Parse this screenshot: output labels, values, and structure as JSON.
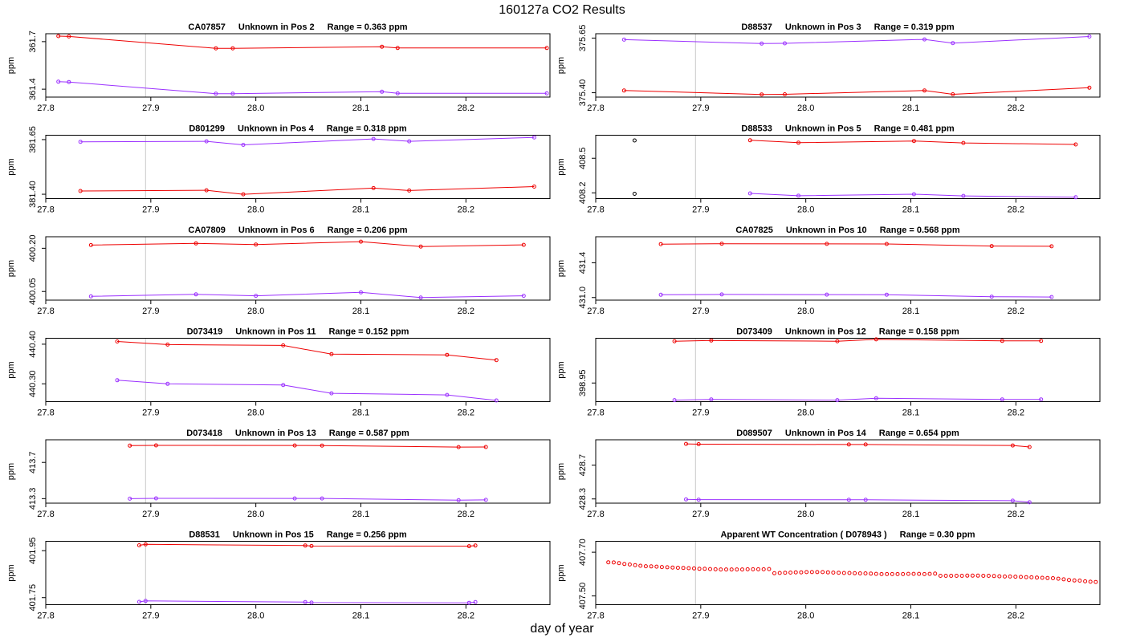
{
  "header": {
    "title": "160127a  CO2 Results"
  },
  "footer": {
    "xlabel": "day of year"
  },
  "colors": {
    "red_series": "#ee0000",
    "purple_series": "#9b30ff",
    "single_point": "#000000",
    "ref_line": "#c8c8c8"
  },
  "chart_data": [
    {
      "type": "line",
      "col": 0,
      "row": 0,
      "title_parts": [
        "CA07857",
        "Unknown in Pos 2",
        "Range =  0.363 ppm"
      ],
      "ylabel": "ppm",
      "xlim": [
        27.8,
        28.28
      ],
      "ylim": [
        361.35,
        361.75
      ],
      "xticks": [
        "27.8",
        "27.9",
        "28.0",
        "28.1",
        "28.2"
      ],
      "yticks": [
        "361.4",
        "361.7"
      ],
      "vlines": [
        27.895,
        28.28
      ],
      "series": [
        {
          "name": "red",
          "color": "#ee0000",
          "x": [
            27.812,
            27.822,
            27.962,
            27.978,
            28.12,
            28.135,
            28.277
          ],
          "y": [
            361.735,
            361.733,
            361.658,
            361.658,
            361.668,
            361.66,
            361.66
          ]
        },
        {
          "name": "purple",
          "color": "#9b30ff",
          "x": [
            27.812,
            27.822,
            27.962,
            27.978,
            28.12,
            28.135,
            28.277
          ],
          "y": [
            361.447,
            361.445,
            361.372,
            361.372,
            361.384,
            361.374,
            361.374
          ]
        }
      ]
    },
    {
      "type": "line",
      "col": 1,
      "row": 0,
      "title_parts": [
        "D88537",
        "Unknown in Pos 3",
        "Range =  0.319 ppm"
      ],
      "ylabel": "ppm",
      "xlim": [
        27.8,
        28.28
      ],
      "ylim": [
        375.38,
        375.67
      ],
      "xticks": [
        "27.8",
        "27.9",
        "28.0",
        "28.1",
        "28.2"
      ],
      "yticks": [
        "375.40",
        "375.65"
      ],
      "vlines": [
        27.895,
        28.28
      ],
      "series": [
        {
          "name": "purple",
          "color": "#9b30ff",
          "x": [
            27.827,
            27.958,
            27.98,
            28.113,
            28.14,
            28.27
          ],
          "y": [
            375.643,
            375.625,
            375.626,
            375.644,
            375.627,
            375.657
          ]
        },
        {
          "name": "red",
          "color": "#ee0000",
          "x": [
            27.827,
            27.958,
            27.98,
            28.113,
            28.14,
            28.27
          ],
          "y": [
            375.41,
            375.392,
            375.393,
            375.41,
            375.393,
            375.423
          ]
        }
      ]
    },
    {
      "type": "line",
      "col": 0,
      "row": 1,
      "title_parts": [
        "D801299",
        "Unknown in Pos 4",
        "Range =  0.318 ppm"
      ],
      "ylabel": "ppm",
      "xlim": [
        27.8,
        28.28
      ],
      "ylim": [
        381.38,
        381.67
      ],
      "xticks": [
        "27.8",
        "27.9",
        "28.0",
        "28.1",
        "28.2"
      ],
      "yticks": [
        "381.40",
        "381.65"
      ],
      "vlines": [
        27.895,
        28.28
      ],
      "series": [
        {
          "name": "purple",
          "color": "#9b30ff",
          "x": [
            27.833,
            27.953,
            27.988,
            28.112,
            28.146,
            28.265
          ],
          "y": [
            381.64,
            381.642,
            381.626,
            381.653,
            381.642,
            381.66
          ]
        },
        {
          "name": "red",
          "color": "#ee0000",
          "x": [
            27.833,
            27.953,
            27.988,
            28.112,
            28.146,
            28.265
          ],
          "y": [
            381.415,
            381.418,
            381.4,
            381.428,
            381.417,
            381.435
          ]
        }
      ]
    },
    {
      "type": "line",
      "col": 1,
      "row": 1,
      "title_parts": [
        "D88533",
        "Unknown in Pos 5",
        "Range =  0.481 ppm"
      ],
      "ylabel": "ppm",
      "xlim": [
        27.8,
        28.28
      ],
      "ylim": [
        408.15,
        408.7
      ],
      "xticks": [
        "27.8",
        "27.9",
        "28.0",
        "28.1",
        "28.2"
      ],
      "yticks": [
        "408.2",
        "408.5"
      ],
      "vlines": [
        27.895,
        28.28
      ],
      "series": [
        {
          "name": "red",
          "color": "#ee0000",
          "x": [
            27.947,
            27.993,
            28.103,
            28.15,
            28.257
          ],
          "y": [
            408.656,
            408.635,
            408.65,
            408.633,
            408.62
          ]
        },
        {
          "name": "purple",
          "color": "#9b30ff",
          "x": [
            27.947,
            27.993,
            28.103,
            28.15,
            28.257
          ],
          "y": [
            408.195,
            408.175,
            408.188,
            408.174,
            408.162
          ]
        },
        {
          "name": "single",
          "color": "#000000",
          "points_only": true,
          "x": [
            27.837,
            27.837
          ],
          "y": [
            408.655,
            408.192
          ]
        }
      ]
    },
    {
      "type": "line",
      "col": 0,
      "row": 2,
      "title_parts": [
        "CA07809",
        "Unknown in Pos 6",
        "Range =  0.206 ppm"
      ],
      "ylabel": "ppm",
      "xlim": [
        27.8,
        28.28
      ],
      "ylim": [
        400.02,
        400.24
      ],
      "xticks": [
        "27.8",
        "27.9",
        "28.0",
        "28.1",
        "28.2"
      ],
      "yticks": [
        "400.05",
        "400.20"
      ],
      "vlines": [
        27.895,
        28.28
      ],
      "series": [
        {
          "name": "red",
          "color": "#ee0000",
          "x": [
            27.843,
            27.943,
            28.0,
            28.1,
            28.157,
            28.255
          ],
          "y": [
            400.211,
            400.217,
            400.213,
            400.223,
            400.206,
            400.212
          ]
        },
        {
          "name": "purple",
          "color": "#9b30ff",
          "x": [
            27.843,
            27.943,
            28.0,
            28.1,
            28.157,
            28.255
          ],
          "y": [
            400.033,
            400.04,
            400.035,
            400.047,
            400.029,
            400.035
          ]
        }
      ]
    },
    {
      "type": "line",
      "col": 1,
      "row": 2,
      "title_parts": [
        "CA07825",
        "Unknown in Pos 10",
        "Range =  0.568 ppm"
      ],
      "ylabel": "ppm",
      "xlim": [
        27.8,
        28.28
      ],
      "ylim": [
        430.97,
        431.7
      ],
      "xticks": [
        "27.8",
        "27.9",
        "28.0",
        "28.1",
        "28.2"
      ],
      "yticks": [
        "431.0",
        "431.4"
      ],
      "vlines": [
        27.895,
        28.28
      ],
      "series": [
        {
          "name": "red",
          "color": "#ee0000",
          "x": [
            27.862,
            27.92,
            28.02,
            28.077,
            28.177,
            28.234
          ],
          "y": [
            431.615,
            431.62,
            431.618,
            431.617,
            431.593,
            431.59
          ]
        },
        {
          "name": "purple",
          "color": "#9b30ff",
          "x": [
            27.862,
            27.92,
            28.02,
            28.077,
            28.177,
            28.234
          ],
          "y": [
            431.032,
            431.036,
            431.034,
            431.033,
            431.01,
            431.006
          ]
        }
      ]
    },
    {
      "type": "line",
      "col": 0,
      "row": 3,
      "title_parts": [
        "D073419",
        "Unknown in Pos 11",
        "Range =  0.152 ppm"
      ],
      "ylabel": "ppm",
      "xlim": [
        27.8,
        28.28
      ],
      "ylim": [
        440.255,
        440.415
      ],
      "xticks": [
        "27.8",
        "27.9",
        "28.0",
        "28.1",
        "28.2"
      ],
      "yticks": [
        "440.30",
        "440.40"
      ],
      "vlines": [
        27.895,
        28.28
      ],
      "series": [
        {
          "name": "red",
          "color": "#ee0000",
          "x": [
            27.868,
            27.916,
            28.026,
            28.072,
            28.182,
            28.229
          ],
          "y": [
            440.407,
            440.399,
            440.397,
            440.375,
            440.373,
            440.36
          ]
        },
        {
          "name": "purple",
          "color": "#9b30ff",
          "x": [
            27.868,
            27.916,
            28.026,
            28.072,
            28.182,
            28.229
          ],
          "y": [
            440.309,
            440.3,
            440.297,
            440.276,
            440.272,
            440.258
          ]
        }
      ]
    },
    {
      "type": "line",
      "col": 1,
      "row": 3,
      "title_parts": [
        "D073409",
        "Unknown in Pos 12",
        "Range =  0.158 ppm"
      ],
      "ylabel": "ppm",
      "xlim": [
        27.8,
        28.28
      ],
      "ylim": [
        398.9,
        399.07
      ],
      "xticks": [
        "27.8",
        "27.9",
        "28.0",
        "28.1",
        "28.2"
      ],
      "yticks": [
        "398.95"
      ],
      "vlines": [
        27.895,
        28.28
      ],
      "series": [
        {
          "name": "red",
          "color": "#ee0000",
          "x": [
            27.875,
            27.91,
            28.03,
            28.067,
            28.187,
            28.224
          ],
          "y": [
            399.062,
            399.064,
            399.062,
            399.067,
            399.063,
            399.063
          ]
        },
        {
          "name": "purple",
          "color": "#9b30ff",
          "x": [
            27.875,
            27.91,
            28.03,
            28.067,
            28.187,
            28.224
          ],
          "y": [
            398.904,
            398.906,
            398.904,
            398.909,
            398.906,
            398.906
          ]
        }
      ]
    },
    {
      "type": "line",
      "col": 0,
      "row": 4,
      "title_parts": [
        "D073418",
        "Unknown in Pos 13",
        "Range =  0.587 ppm"
      ],
      "ylabel": "ppm",
      "xlim": [
        27.8,
        28.28
      ],
      "ylim": [
        413.25,
        413.95
      ],
      "xticks": [
        "27.8",
        "27.9",
        "28.0",
        "28.1",
        "28.2"
      ],
      "yticks": [
        "413.3",
        "413.7"
      ],
      "vlines": [
        27.895,
        28.28
      ],
      "series": [
        {
          "name": "red",
          "color": "#ee0000",
          "x": [
            27.88,
            27.905,
            28.037,
            28.063,
            28.193,
            28.219
          ],
          "y": [
            413.885,
            413.888,
            413.887,
            413.886,
            413.869,
            413.87
          ]
        },
        {
          "name": "purple",
          "color": "#9b30ff",
          "x": [
            27.88,
            27.905,
            28.037,
            28.063,
            28.193,
            28.219
          ],
          "y": [
            413.3,
            413.303,
            413.302,
            413.302,
            413.283,
            413.286
          ]
        }
      ]
    },
    {
      "type": "line",
      "col": 1,
      "row": 4,
      "title_parts": [
        "D089507",
        "Unknown in Pos 14",
        "Range =  0.654 ppm"
      ],
      "ylabel": "ppm",
      "xlim": [
        27.8,
        28.28
      ],
      "ylim": [
        428.25,
        429.0
      ],
      "xticks": [
        "27.8",
        "27.9",
        "28.0",
        "28.1",
        "28.2"
      ],
      "yticks": [
        "428.3",
        "428.7"
      ],
      "vlines": [
        27.895,
        28.28
      ],
      "series": [
        {
          "name": "red",
          "color": "#ee0000",
          "x": [
            27.886,
            27.898,
            28.041,
            28.057,
            28.197,
            28.213
          ],
          "y": [
            428.952,
            428.948,
            428.944,
            428.944,
            428.933,
            428.915
          ]
        },
        {
          "name": "purple",
          "color": "#9b30ff",
          "x": [
            27.886,
            27.898,
            28.041,
            28.057,
            28.197,
            28.213
          ],
          "y": [
            428.295,
            428.292,
            428.29,
            428.29,
            428.279,
            428.26
          ]
        }
      ]
    },
    {
      "type": "line",
      "col": 0,
      "row": 5,
      "title_parts": [
        "D88531",
        "Unknown in Pos 15",
        "Range =  0.256 ppm"
      ],
      "ylabel": "ppm",
      "xlim": [
        27.8,
        28.28
      ],
      "ylim": [
        401.72,
        401.99
      ],
      "xticks": [
        "27.8",
        "27.9",
        "28.0",
        "28.1",
        "28.2"
      ],
      "yticks": [
        "401.75",
        "401.95"
      ],
      "vlines": [
        27.895,
        28.28
      ],
      "series": [
        {
          "name": "red",
          "color": "#ee0000",
          "x": [
            27.889,
            27.895,
            28.047,
            28.053,
            28.203,
            28.209
          ],
          "y": [
            401.973,
            401.977,
            401.972,
            401.97,
            401.969,
            401.972
          ]
        },
        {
          "name": "purple",
          "color": "#9b30ff",
          "x": [
            27.889,
            27.895,
            28.047,
            28.053,
            28.203,
            28.209
          ],
          "y": [
            401.732,
            401.736,
            401.731,
            401.729,
            401.728,
            401.731
          ]
        }
      ]
    },
    {
      "type": "scatter",
      "col": 1,
      "row": 5,
      "title_parts": [
        "Apparent WT Concentration ( D078943 )",
        "Range = 0.30 ppm"
      ],
      "ylabel": "ppm",
      "xlim": [
        27.8,
        28.28
      ],
      "ylim": [
        407.46,
        407.75
      ],
      "xticks": [
        "27.8",
        "27.9",
        "28.0",
        "28.1",
        "28.2"
      ],
      "yticks": [
        "407.50",
        "407.70"
      ],
      "vlines": [
        27.895,
        28.28
      ],
      "series": [
        {
          "name": "wt",
          "color": "#ee0000",
          "points_only": true,
          "x": [
            27.812,
            27.8171,
            27.8222,
            27.8273,
            27.8324,
            27.8375,
            27.8426,
            27.8477,
            27.8528,
            27.8579,
            27.863,
            27.8681,
            27.8732,
            27.8783,
            27.8834,
            27.8885,
            27.8936,
            27.8987,
            27.9038,
            27.9089,
            27.914,
            27.9191,
            27.9242,
            27.9293,
            27.9344,
            27.9395,
            27.9446,
            27.9497,
            27.9548,
            27.9599,
            27.965,
            27.9701,
            27.9752,
            27.9803,
            27.9854,
            27.9905,
            27.9956,
            28.0007,
            28.0058,
            28.0109,
            28.016,
            28.0211,
            28.0262,
            28.0313,
            28.0364,
            28.0415,
            28.0466,
            28.0517,
            28.0568,
            28.0619,
            28.067,
            28.0721,
            28.0772,
            28.0823,
            28.0874,
            28.0925,
            28.0976,
            28.1027,
            28.1078,
            28.1129,
            28.118,
            28.1231,
            28.1282,
            28.1333,
            28.1384,
            28.1435,
            28.1486,
            28.1537,
            28.1588,
            28.1639,
            28.169,
            28.1741,
            28.1792,
            28.1843,
            28.1894,
            28.1945,
            28.1996,
            28.2047,
            28.2098,
            28.2149,
            28.22,
            28.2251,
            28.2302,
            28.2353,
            28.2404,
            28.2455,
            28.2506,
            28.2557,
            28.2608,
            28.2659,
            28.271,
            28.276
          ],
          "y": [
            407.654,
            407.653,
            407.65,
            407.646,
            407.644,
            407.641,
            407.638,
            407.636,
            407.635,
            407.634,
            407.632,
            407.631,
            407.63,
            407.629,
            407.628,
            407.627,
            407.626,
            407.624,
            407.624,
            407.623,
            407.622,
            407.621,
            407.621,
            407.621,
            407.621,
            407.621,
            407.622,
            407.622,
            407.622,
            407.622,
            407.623,
            407.604,
            407.605,
            407.606,
            407.607,
            407.608,
            407.608,
            407.609,
            407.609,
            407.609,
            407.609,
            407.608,
            407.607,
            407.606,
            407.605,
            407.605,
            407.604,
            407.603,
            407.603,
            407.602,
            407.601,
            407.6,
            407.6,
            407.6,
            407.6,
            407.6,
            407.601,
            407.601,
            407.601,
            407.6,
            407.601,
            407.602,
            407.592,
            407.592,
            407.592,
            407.592,
            407.592,
            407.593,
            407.593,
            407.593,
            407.592,
            407.592,
            407.591,
            407.59,
            407.589,
            407.589,
            407.588,
            407.587,
            407.586,
            407.585,
            407.584,
            407.583,
            407.582,
            407.581,
            407.579,
            407.576,
            407.573,
            407.571,
            407.57,
            407.567,
            407.565,
            407.564
          ]
        }
      ]
    }
  ]
}
